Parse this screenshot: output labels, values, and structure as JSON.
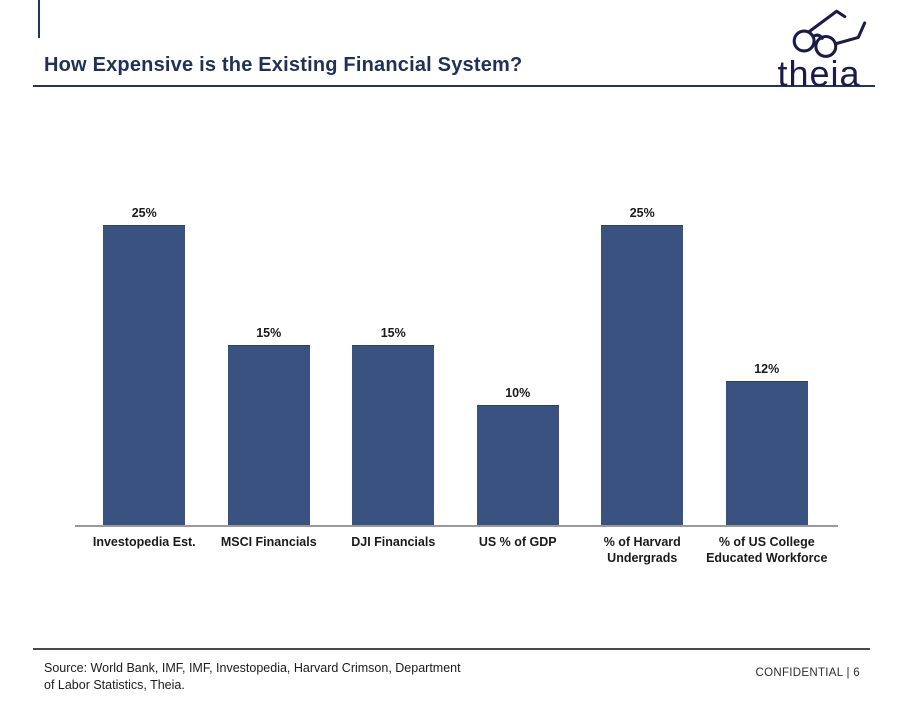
{
  "header": {
    "title": "How Expensive is the Existing Financial System?"
  },
  "logo": {
    "text": "theia",
    "icon": "glasses-icon"
  },
  "footer": {
    "source": "Source: World Bank, IMF, IMF, Investopedia, Harvard Crimson, Department\nof Labor Statistics, Theia.",
    "confidential": "CONFIDENTIAL | 6"
  },
  "colors": {
    "bar": "#3a527f",
    "title_navy": "#1f3157",
    "rule_navy": "#23355c",
    "logo_navy": "#1b1b4a",
    "axis_gray": "#9a9a9a",
    "footer_rule": "#4a4a4a",
    "label_black": "#1a1a1a"
  },
  "chart_data": {
    "type": "bar",
    "title": "How Expensive is the Existing Financial System?",
    "categories": [
      "Investopedia Est.",
      "MSCI Financials",
      "DJI Financials",
      "US % of GDP",
      "% of Harvard\nUndergrads",
      "% of US College\nEducated Workforce"
    ],
    "values": [
      25,
      15,
      15,
      10,
      25,
      12
    ],
    "value_labels": [
      "25%",
      "15%",
      "15%",
      "10%",
      "25%",
      "12%"
    ],
    "unit": "%",
    "xlabel": "",
    "ylabel": "",
    "ylim": [
      0,
      25
    ],
    "grid": false,
    "legend": false,
    "value_label_position": "above"
  }
}
